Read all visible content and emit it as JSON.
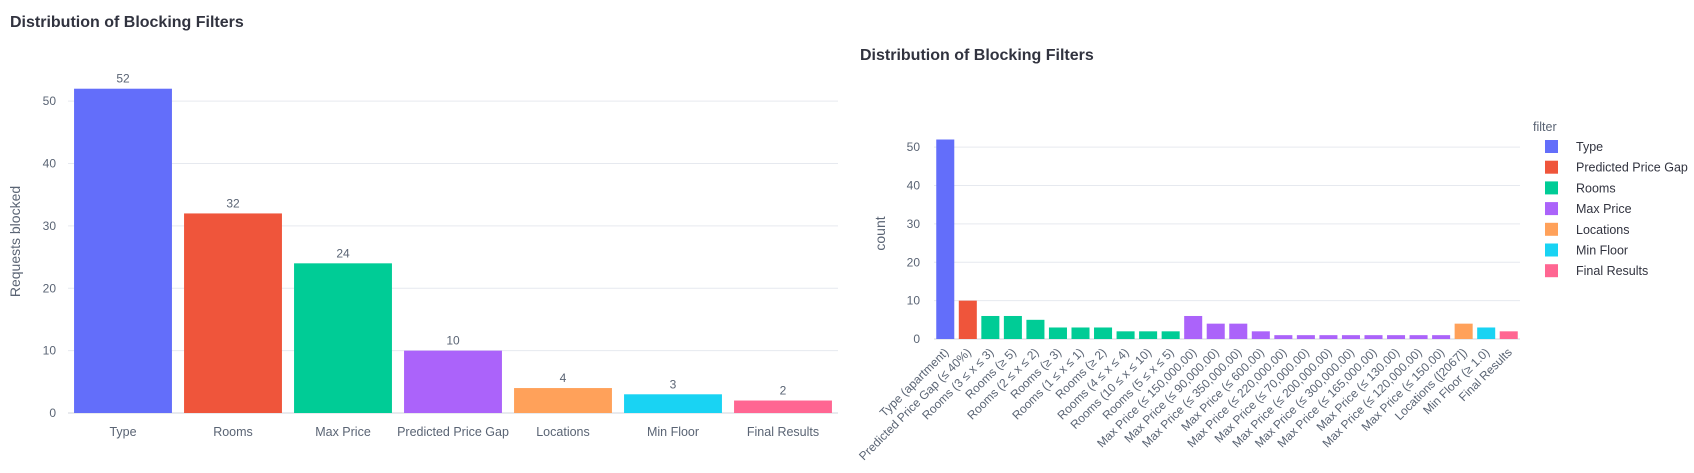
{
  "chart_data": [
    {
      "type": "bar",
      "title": "Distribution of Blocking Filters",
      "xlabel": "",
      "ylabel": "Requests blocked",
      "ylim": [
        0,
        55
      ],
      "yticks": [
        0,
        10,
        20,
        30,
        40,
        50
      ],
      "grid": true,
      "categories": [
        "Type",
        "Rooms",
        "Max Price",
        "Predicted Price Gap",
        "Locations",
        "Min Floor",
        "Final Results"
      ],
      "values": [
        52,
        32,
        24,
        10,
        4,
        3,
        2
      ],
      "colors": [
        "#636efa",
        "#ef553b",
        "#00cc96",
        "#ab63fa",
        "#ffa15a",
        "#19d3f3",
        "#ff6692"
      ],
      "data_labels": true
    },
    {
      "type": "bar",
      "title": "Distribution of Blocking Filters",
      "xlabel": "",
      "ylabel": "count",
      "ylim": [
        0,
        55
      ],
      "yticks": [
        0,
        10,
        20,
        30,
        40,
        50
      ],
      "grid": true,
      "legend_title": "filter",
      "legend_position": "right",
      "legend": [
        {
          "name": "Type",
          "color": "#636efa"
        },
        {
          "name": "Predicted Price Gap",
          "color": "#ef553b"
        },
        {
          "name": "Rooms",
          "color": "#00cc96"
        },
        {
          "name": "Max Price",
          "color": "#ab63fa"
        },
        {
          "name": "Locations",
          "color": "#ffa15a"
        },
        {
          "name": "Min Floor",
          "color": "#19d3f3"
        },
        {
          "name": "Final Results",
          "color": "#ff6692"
        }
      ],
      "categories": [
        "Type (apartment)",
        "Predicted Price Gap (≤ 40%)",
        "Rooms (3 ≤ x ≤ 3)",
        "Rooms (≥ 5)",
        "Rooms (2 ≤ x ≤ 2)",
        "Rooms (≥ 3)",
        "Rooms (1 ≤ x ≤ 1)",
        "Rooms (≥ 2)",
        "Rooms (4 ≤ x ≤ 4)",
        "Rooms (10 ≤ x ≤ 10)",
        "Rooms (5 ≤ x ≤ 5)",
        "Max Price (≤ 150,000.00)",
        "Max Price (≤ 90,000.00)",
        "Max Price (≤ 350,000.00)",
        "Max Price (≤ 600.00)",
        "Max Price (≤ 220,000.00)",
        "Max Price (≤ 70,000.00)",
        "Max Price (≤ 200,000.00)",
        "Max Price (≤ 300,000.00)",
        "Max Price (≤ 165,000.00)",
        "Max Price (≤ 130.00)",
        "Max Price (≤ 120,000.00)",
        "Max Price (≤ 150.00)",
        "Locations ([2067])",
        "Min Floor (≥ 1.0)",
        "Final Results"
      ],
      "values": [
        52,
        10,
        6,
        6,
        5,
        3,
        3,
        3,
        2,
        2,
        2,
        6,
        4,
        4,
        2,
        1,
        1,
        1,
        1,
        1,
        1,
        1,
        1,
        4,
        3,
        2
      ],
      "groups": [
        "Type",
        "Predicted Price Gap",
        "Rooms",
        "Rooms",
        "Rooms",
        "Rooms",
        "Rooms",
        "Rooms",
        "Rooms",
        "Rooms",
        "Rooms",
        "Max Price",
        "Max Price",
        "Max Price",
        "Max Price",
        "Max Price",
        "Max Price",
        "Max Price",
        "Max Price",
        "Max Price",
        "Max Price",
        "Max Price",
        "Max Price",
        "Locations",
        "Min Floor",
        "Final Results"
      ]
    }
  ]
}
